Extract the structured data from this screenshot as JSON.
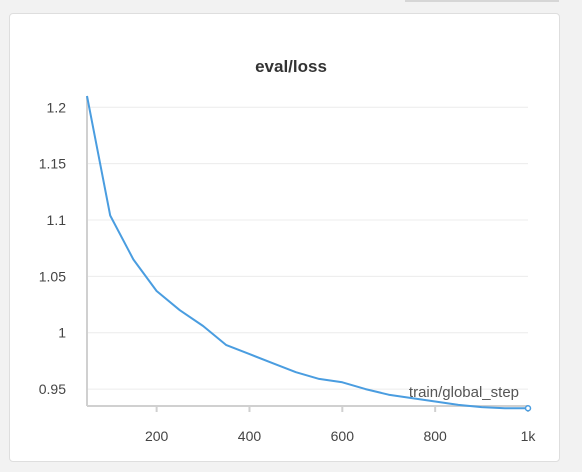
{
  "chart_data": {
    "type": "line",
    "title": "eval/loss",
    "xlabel": "train/global_step",
    "ylabel": "",
    "xlim": [
      50,
      1000
    ],
    "ylim": [
      0.935,
      1.21
    ],
    "x_ticks": [
      200,
      400,
      600,
      800,
      1000
    ],
    "x_tick_labels": [
      "200",
      "400",
      "600",
      "800",
      "1k"
    ],
    "y_ticks": [
      0.95,
      1.0,
      1.05,
      1.1,
      1.15,
      1.2
    ],
    "y_tick_labels": [
      "0.95",
      "1",
      "1.05",
      "1.1",
      "1.15",
      "1.2"
    ],
    "grid": true,
    "line_color": "#4a9de0",
    "series": [
      {
        "x": [
          50,
          100,
          150,
          200,
          250,
          300,
          350,
          400,
          450,
          500,
          550,
          600,
          650,
          700,
          750,
          800,
          850,
          900,
          950,
          1000
        ],
        "values": [
          1.21,
          1.104,
          1.065,
          1.037,
          1.02,
          1.006,
          0.989,
          0.981,
          0.973,
          0.965,
          0.959,
          0.956,
          0.95,
          0.945,
          0.942,
          0.939,
          0.936,
          0.934,
          0.933,
          0.933
        ]
      }
    ]
  }
}
